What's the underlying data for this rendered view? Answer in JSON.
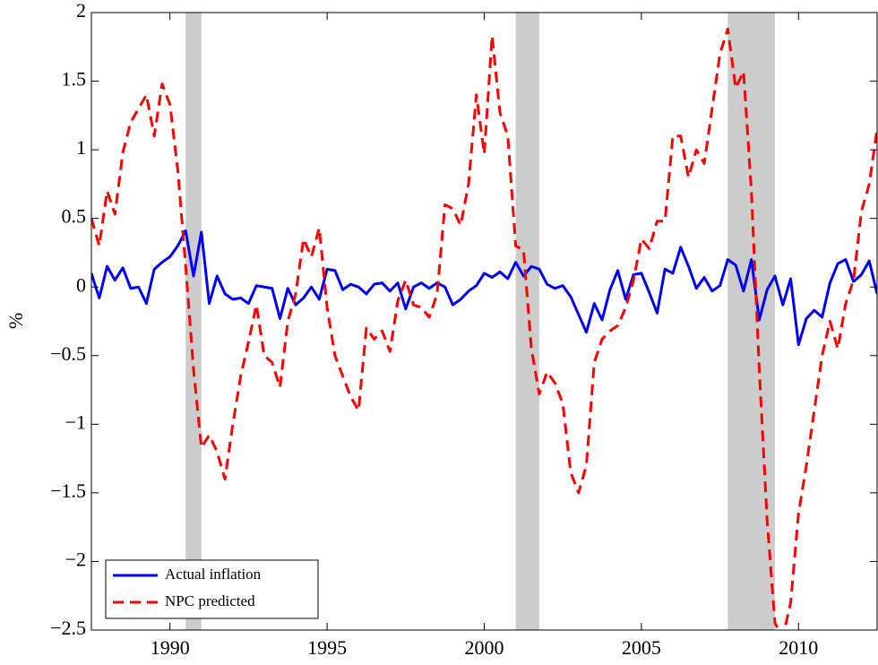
{
  "chart_data": {
    "type": "line",
    "y_label": "%",
    "x": [
      1987.5,
      1987.75,
      1988,
      1988.25,
      1988.5,
      1988.75,
      1989,
      1989.25,
      1989.5,
      1989.75,
      1990,
      1990.25,
      1990.5,
      1990.75,
      1991,
      1991.25,
      1991.5,
      1991.75,
      1992,
      1992.25,
      1992.5,
      1992.75,
      1993,
      1993.25,
      1993.5,
      1993.75,
      1994,
      1994.25,
      1994.5,
      1994.75,
      1995,
      1995.25,
      1995.5,
      1995.75,
      1996,
      1996.25,
      1996.5,
      1996.75,
      1997,
      1997.25,
      1997.5,
      1997.75,
      1998,
      1998.25,
      1998.5,
      1998.75,
      1999,
      1999.25,
      1999.5,
      1999.75,
      2000,
      2000.25,
      2000.5,
      2000.75,
      2001,
      2001.25,
      2001.5,
      2001.75,
      2002,
      2002.25,
      2002.5,
      2002.75,
      2003,
      2003.25,
      2003.5,
      2003.75,
      2004,
      2004.25,
      2004.5,
      2004.75,
      2005,
      2005.25,
      2005.5,
      2005.75,
      2006,
      2006.25,
      2006.5,
      2006.75,
      2007,
      2007.25,
      2007.5,
      2007.75,
      2008,
      2008.25,
      2008.5,
      2008.75,
      2009,
      2009.25,
      2009.5,
      2009.75,
      2010,
      2010.25,
      2010.5,
      2010.75,
      2011,
      2011.25,
      2011.5,
      2011.75,
      2012,
      2012.25,
      2012.5
    ],
    "series": [
      {
        "name": "Actual inflation",
        "color": "#0000ff",
        "dash": false,
        "values": [
          0.1,
          -0.08,
          0.15,
          0.05,
          0.14,
          -0.01,
          0.0,
          -0.12,
          0.13,
          0.18,
          0.22,
          0.3,
          0.41,
          0.08,
          0.4,
          -0.12,
          0.08,
          -0.05,
          -0.09,
          -0.08,
          -0.12,
          0.01,
          0.0,
          -0.01,
          -0.23,
          -0.01,
          -0.13,
          -0.08,
          0.0,
          -0.09,
          0.13,
          0.12,
          -0.02,
          0.02,
          0.0,
          -0.05,
          0.02,
          0.03,
          -0.03,
          0.03,
          -0.16,
          0.0,
          0.03,
          -0.01,
          0.03,
          0.0,
          -0.13,
          -0.09,
          -0.03,
          0.01,
          0.1,
          0.07,
          0.11,
          0.06,
          0.18,
          0.08,
          0.15,
          0.13,
          0.02,
          -0.01,
          0.01,
          -0.07,
          -0.2,
          -0.33,
          -0.12,
          -0.24,
          -0.02,
          0.12,
          -0.09,
          0.09,
          0.1,
          -0.04,
          -0.19,
          0.13,
          0.1,
          0.29,
          0.15,
          -0.01,
          0.07,
          -0.03,
          0.01,
          0.2,
          0.16,
          -0.03,
          0.2,
          -0.24,
          -0.02,
          0.08,
          -0.13,
          0.06,
          -0.42,
          -0.23,
          -0.17,
          -0.22,
          0.03,
          0.17,
          0.2,
          0.04,
          0.09,
          0.19,
          -0.05
        ]
      },
      {
        "name": "NPC predicted",
        "color": "#ff0000",
        "dash": true,
        "values": [
          0.5,
          0.3,
          0.7,
          0.53,
          0.98,
          1.2,
          1.3,
          1.4,
          1.1,
          1.48,
          1.33,
          0.85,
          0.15,
          -0.6,
          -1.17,
          -1.08,
          -1.2,
          -1.4,
          -1.0,
          -0.65,
          -0.4,
          -0.13,
          -0.5,
          -0.55,
          -0.73,
          -0.25,
          -0.05,
          0.35,
          0.22,
          0.43,
          -0.15,
          -0.5,
          -0.65,
          -0.8,
          -0.9,
          -0.3,
          -0.38,
          -0.32,
          -0.47,
          -0.1,
          0.05,
          -0.13,
          -0.15,
          -0.22,
          -0.05,
          0.6,
          0.57,
          0.45,
          0.75,
          1.4,
          0.97,
          1.83,
          1.27,
          1.1,
          0.3,
          0.27,
          -0.45,
          -0.78,
          -0.62,
          -0.7,
          -0.85,
          -1.35,
          -1.5,
          -1.3,
          -0.55,
          -0.38,
          -0.32,
          -0.28,
          -0.15,
          0.05,
          0.35,
          0.28,
          0.48,
          0.48,
          1.1,
          1.1,
          0.8,
          1.0,
          0.9,
          1.3,
          1.7,
          1.88,
          1.45,
          1.57,
          0.7,
          -0.6,
          -1.7,
          -2.45,
          -2.55,
          -2.3,
          -1.65,
          -1.3,
          -0.9,
          -0.5,
          -0.25,
          -0.45,
          -0.12,
          0.05,
          0.55,
          0.75,
          1.15
        ]
      }
    ],
    "shaded_regions": [
      [
        1990.5,
        1991.0
      ],
      [
        2001.0,
        2001.75
      ],
      [
        2007.75,
        2009.25
      ]
    ],
    "shade_color": "#cccccc",
    "xlim": [
      1987.5,
      2012.5
    ],
    "ylim": [
      -2.5,
      2
    ],
    "xticks": [
      1990,
      1995,
      2000,
      2005,
      2010
    ],
    "yticks": [
      {
        "value": -2.5,
        "label": "−2.5"
      },
      {
        "value": -2,
        "label": "−2"
      },
      {
        "value": -1.5,
        "label": "−1.5"
      },
      {
        "value": -1,
        "label": "−1"
      },
      {
        "value": -0.5,
        "label": "−0.5"
      },
      0,
      0.5,
      1,
      1.5,
      2
    ],
    "legend": "lower left"
  }
}
